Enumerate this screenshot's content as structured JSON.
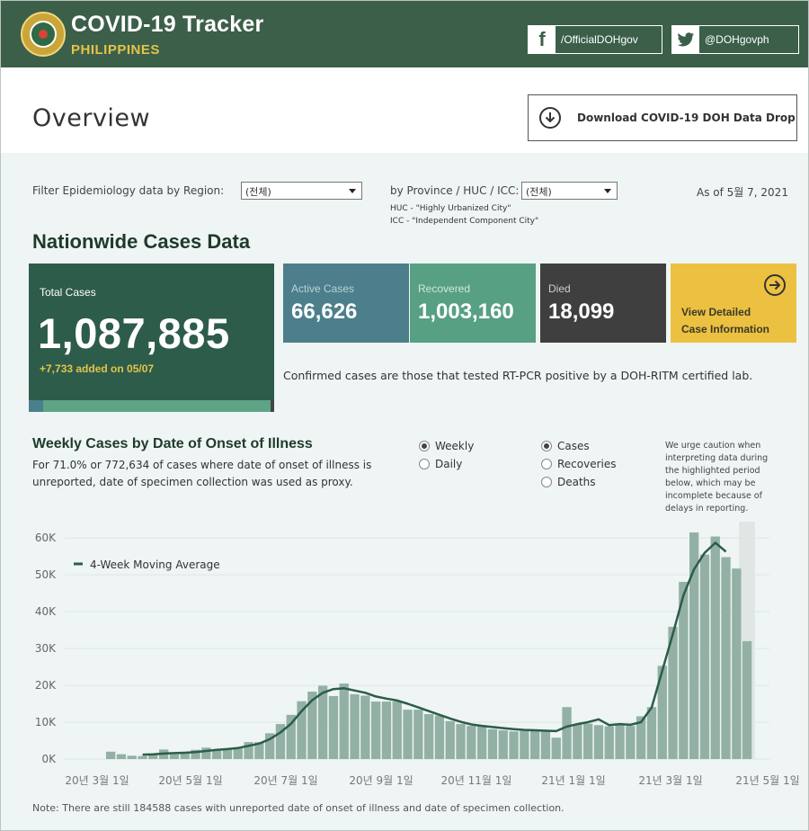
{
  "header": {
    "title": "COVID-19 Tracker",
    "subtitle": "PHILIPPINES",
    "facebook": "/OfficialDOHgov",
    "twitter": "@DOHgovph"
  },
  "page": {
    "title": "Overview",
    "download_label": "Download COVID-19 DOH Data Drop"
  },
  "filters": {
    "region_label": "Filter Epidemiology data by Region:",
    "region_value": "(전체)",
    "province_label": "by Province / HUC / ICC:",
    "province_value": "(전체)",
    "huc_note": "HUC - \"Highly Urbanized City\"",
    "icc_note": "ICC - \"Independent Component City\"",
    "as_of": "As of 5월 7, 2021"
  },
  "nationwide": {
    "title": "Nationwide Cases Data",
    "total_label": "Total Cases",
    "total_value": "1,087,885",
    "added": "+7,733 added on 05/07",
    "active_label": "Active Cases",
    "active_value": "66,626",
    "recovered_label": "Recovered",
    "recovered_value": "1,003,160",
    "died_label": "Died",
    "died_value": "18,099",
    "detail_line1": "View Detailed",
    "detail_line2": "Case Information",
    "confirmed_note": "Confirmed cases are those that tested RT-PCR positive by a DOH-RITM certified lab.",
    "colors": {
      "total": "#2d5c4a",
      "active": "#4c7f8b",
      "recovered": "#58a083",
      "died": "#3f3f3f",
      "detail": "#ecc041"
    }
  },
  "weekly": {
    "title": "Weekly Cases by Date of Onset of Illness",
    "desc": "For 71.0% or 772,634 of cases where date of onset of illness is unreported, date of specimen collection was used as proxy.",
    "period_options": [
      "Weekly",
      "Daily"
    ],
    "period_selected": "Weekly",
    "metric_options": [
      "Cases",
      "Recoveries",
      "Deaths"
    ],
    "metric_selected": "Cases",
    "caution": "We urge caution when interpreting data during the highlighted period below, which may be incomplete because of delays in reporting.",
    "legend": "4-Week Moving Average",
    "footnote": "Note: There are still 184588 cases with unreported date of onset of illness and date of specimen collection."
  },
  "chart_data": {
    "type": "bar",
    "ylabel": "",
    "xlabel": "",
    "ylim": [
      0,
      62000
    ],
    "y_ticks": [
      "0K",
      "10K",
      "20K",
      "30K",
      "40K",
      "50K",
      "60K"
    ],
    "x_ticks": [
      "20년 3월 1일",
      "20년 5월 1일",
      "20년 7월 1일",
      "20년 9월 1일",
      "20년 11월 1일",
      "21년 1월 1일",
      "21년 3월 1일",
      "21년 5월 1일"
    ],
    "grid": true,
    "bar_color": "#93b0a5",
    "line_color": "#2c5c4a",
    "highlight_weeks": 2,
    "values": [
      2000,
      1300,
      900,
      800,
      1300,
      2600,
      1300,
      2000,
      2500,
      3100,
      2600,
      2600,
      3100,
      4600,
      4600,
      7000,
      9500,
      12000,
      15700,
      18300,
      19900,
      17100,
      20500,
      17600,
      17200,
      15600,
      15600,
      15600,
      13400,
      13400,
      12200,
      11800,
      10300,
      9500,
      9000,
      9000,
      8100,
      7800,
      7500,
      7600,
      7800,
      7600,
      5800,
      14100,
      9400,
      9600,
      9200,
      8900,
      9600,
      9000,
      11600,
      14100,
      25300,
      35900,
      48100,
      61500,
      55500,
      60400,
      54800,
      51700,
      32000
    ],
    "moving_average": [
      null,
      null,
      null,
      1200,
      1300,
      1500,
      1600,
      1700,
      1900,
      2200,
      2500,
      2700,
      3000,
      3600,
      4200,
      5400,
      7200,
      9600,
      13000,
      16000,
      18000,
      19000,
      19200,
      18600,
      18000,
      17000,
      16400,
      15900,
      15000,
      14000,
      13000,
      12000,
      11000,
      10100,
      9400,
      9000,
      8700,
      8400,
      8100,
      7900,
      7800,
      7700,
      7600,
      8800,
      9500,
      10000,
      10800,
      9200,
      9500,
      9300,
      10000,
      14000,
      24000,
      34000,
      44500,
      51500,
      56000,
      58700,
      56300,
      null,
      null
    ],
    "series": [
      {
        "name": "4-Week Moving Average"
      }
    ]
  }
}
